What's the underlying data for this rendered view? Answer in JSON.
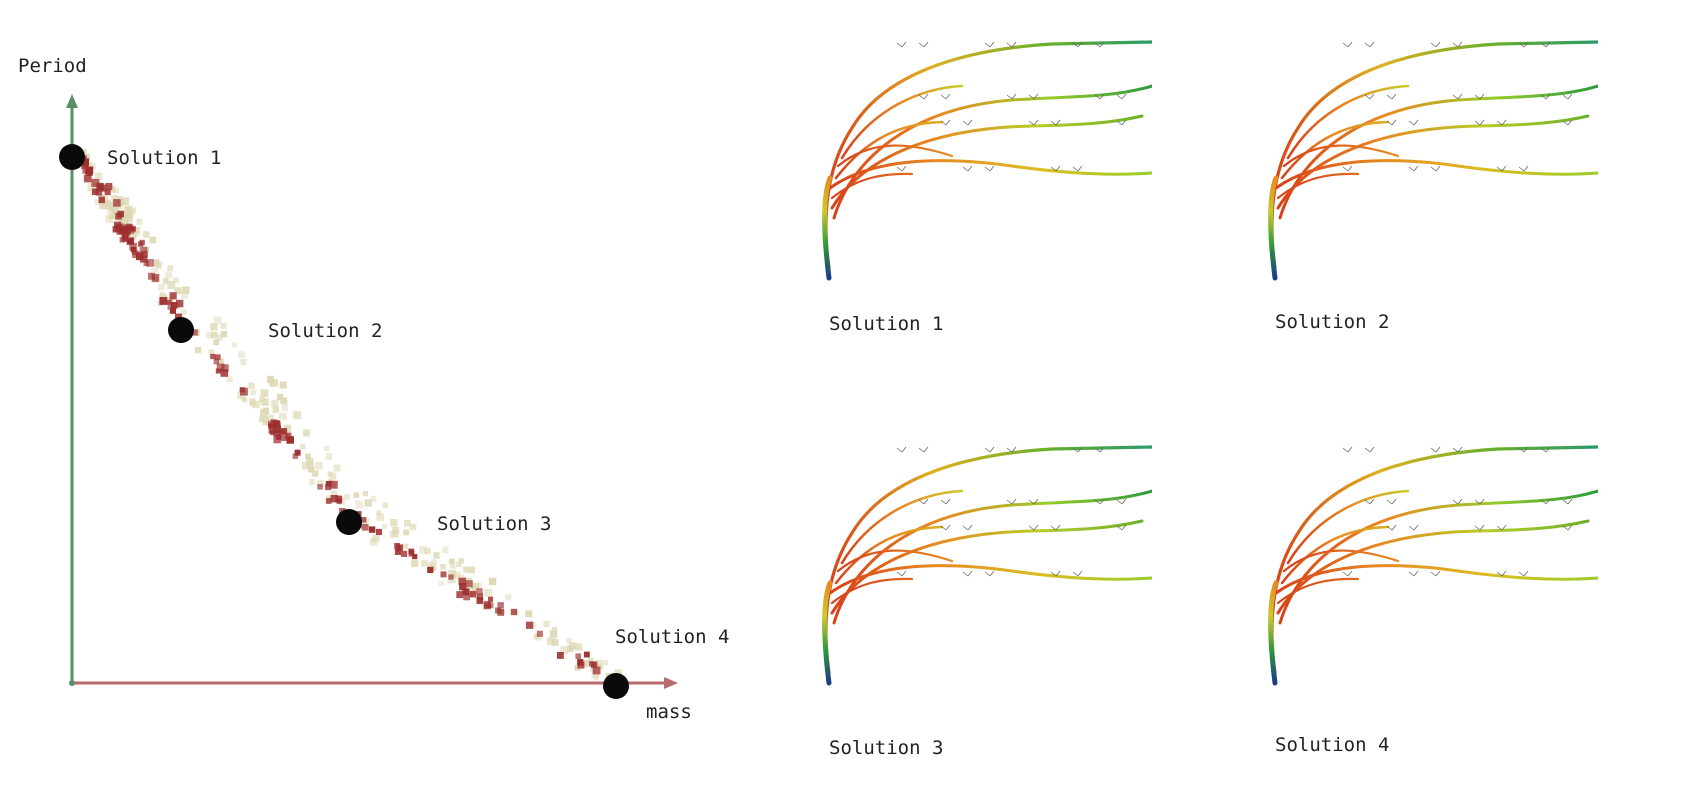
{
  "plot": {
    "y_axis_label": "Period",
    "x_axis_label": "mass",
    "solutions": [
      {
        "label": "Solution 1"
      },
      {
        "label": "Solution 2"
      },
      {
        "label": "Solution 3"
      },
      {
        "label": "Solution 4"
      }
    ],
    "colors": {
      "y_axis": "#5a8f6a",
      "x_axis": "#b86a6e",
      "dominated_point": "#9e2f2f",
      "population_point": "#ddd8b4",
      "solution_marker": "#0a0a0a"
    }
  },
  "shapes": [
    {
      "caption": "Solution 1"
    },
    {
      "caption": "Solution 2"
    },
    {
      "caption": "Solution 3"
    },
    {
      "caption": "Solution 4"
    }
  ]
}
